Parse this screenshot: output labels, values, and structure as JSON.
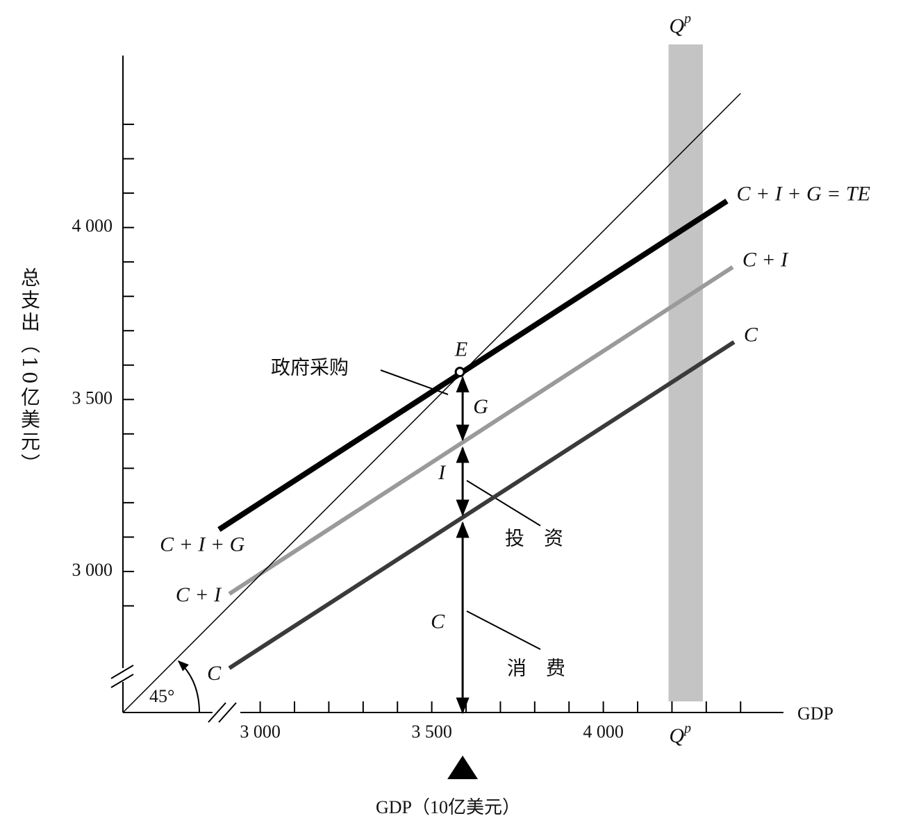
{
  "chart_data": {
    "type": "line",
    "y_label": "总支出（10亿美元）",
    "x_label": "GDP（10亿美元）",
    "x_axis_name": "GDP",
    "xlim": [
      2600,
      4525
    ],
    "ylim": [
      2590,
      4500
    ],
    "xticks": [
      {
        "value": 3000,
        "label": "3 000"
      },
      {
        "value": 3500,
        "label": "3 500"
      },
      {
        "value": 4000,
        "label": "4 000"
      }
    ],
    "xminorticks": [
      3000,
      3100,
      3200,
      3300,
      3400,
      3500,
      3600,
      3700,
      3800,
      3900,
      4000,
      4100,
      4200,
      4300,
      4400
    ],
    "yticks": [
      {
        "value": 3000,
        "label": "3 000"
      },
      {
        "value": 3500,
        "label": "3 500"
      },
      {
        "value": 4000,
        "label": "4 000"
      }
    ],
    "yminorticks": [
      2900,
      3000,
      3100,
      3200,
      3300,
      3400,
      3500,
      3600,
      3700,
      3800,
      3900,
      4000,
      4100,
      4200,
      4300
    ],
    "series": [
      {
        "name": "C + I + G = TE",
        "start_label": "C + I + G",
        "color": "#000000",
        "width": 8,
        "x": [
          2880,
          4360
        ],
        "values": [
          3122,
          4077
        ]
      },
      {
        "name": "C + I",
        "start_label": "C + I",
        "color": "#9a9a9a",
        "width": 6,
        "x": [
          2910,
          4377
        ],
        "values": [
          2935,
          3885
        ]
      },
      {
        "name": "C",
        "start_label": "C",
        "color": "#3a3a3a",
        "width": 6,
        "x": [
          2910,
          4381
        ],
        "values": [
          2719,
          3667
        ]
      },
      {
        "name": "45°",
        "color": "#000000",
        "width": 1.5,
        "x": [
          2600,
          4400
        ],
        "values": [
          2590,
          4390
        ]
      }
    ],
    "equilibrium": {
      "label": "E",
      "x": 3590,
      "y": 3580
    },
    "components": [
      {
        "label": "G",
        "from": "C + I + G = TE",
        "to": "C + I"
      },
      {
        "label": "I",
        "from": "C + I",
        "to": "C"
      },
      {
        "label": "C",
        "from": "C",
        "to": null
      }
    ],
    "band": {
      "label": "Q",
      "label_sup": "p",
      "x_range": [
        4190,
        4290
      ],
      "color": "#c4c4c4"
    },
    "annotations": [
      "政府采购",
      "投　资",
      "消　费"
    ]
  }
}
